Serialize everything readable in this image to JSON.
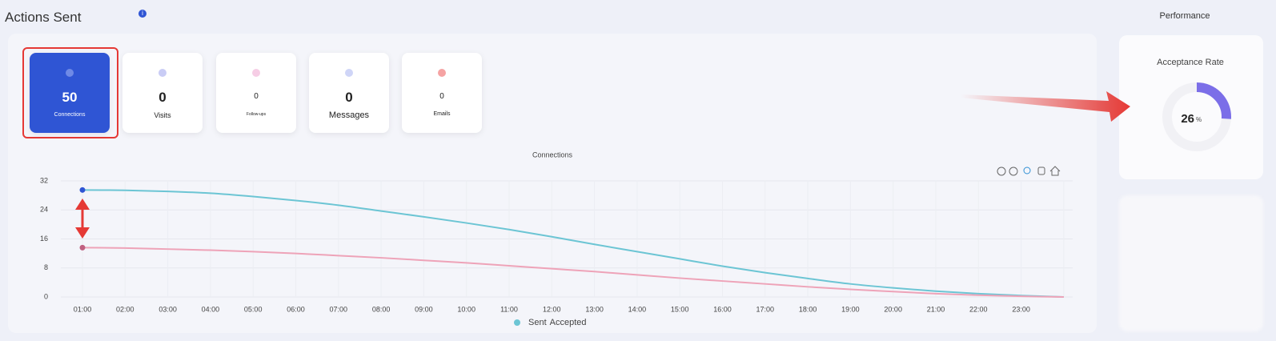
{
  "header": {
    "title": "Actions Sent"
  },
  "cards": [
    {
      "value": 50,
      "label": "Connections"
    },
    {
      "value": 0,
      "label": "Visits"
    },
    {
      "value": 0,
      "label": "Follow-ups"
    },
    {
      "value": 0,
      "label": "Messages"
    },
    {
      "value": 0,
      "label": "Emails"
    }
  ],
  "chart_data": {
    "type": "line",
    "title": "Connections",
    "categories": [
      "01:00",
      "02:00",
      "03:00",
      "04:00",
      "05:00",
      "06:00",
      "07:00",
      "08:00",
      "09:00",
      "10:00",
      "11:00",
      "12:00",
      "13:00",
      "14:00",
      "15:00",
      "16:00",
      "17:00",
      "18:00",
      "19:00",
      "20:00",
      "21:00",
      "22:00",
      "23:00",
      null
    ],
    "series": [
      {
        "name": "Sent",
        "color": "#6cc5d4",
        "values": [
          29.5,
          29.4,
          29.1,
          28.6,
          27.7,
          26.6,
          25.3,
          23.7,
          22.1,
          20.4,
          18.6,
          16.6,
          14.5,
          12.5,
          10.5,
          8.5,
          6.7,
          5.1,
          3.6,
          2.5,
          1.6,
          0.9,
          0.4,
          0
        ]
      },
      {
        "name": "Accepted",
        "color": "#eea3b8",
        "values": [
          13.6,
          13.5,
          13.2,
          12.9,
          12.5,
          12.0,
          11.4,
          10.8,
          10.1,
          9.4,
          8.6,
          7.8,
          7.0,
          6.1,
          5.2,
          4.4,
          3.6,
          2.8,
          2.1,
          1.5,
          0.9,
          0.5,
          0.2,
          0
        ]
      }
    ],
    "ylim": [
      0,
      32
    ],
    "yticks": [
      0,
      8,
      16,
      24,
      32
    ],
    "grid": true
  },
  "performance": {
    "title": "Performance",
    "card_title": "Acceptance Rate",
    "value": 26,
    "unit": "%",
    "color": "#7b6ee8"
  }
}
